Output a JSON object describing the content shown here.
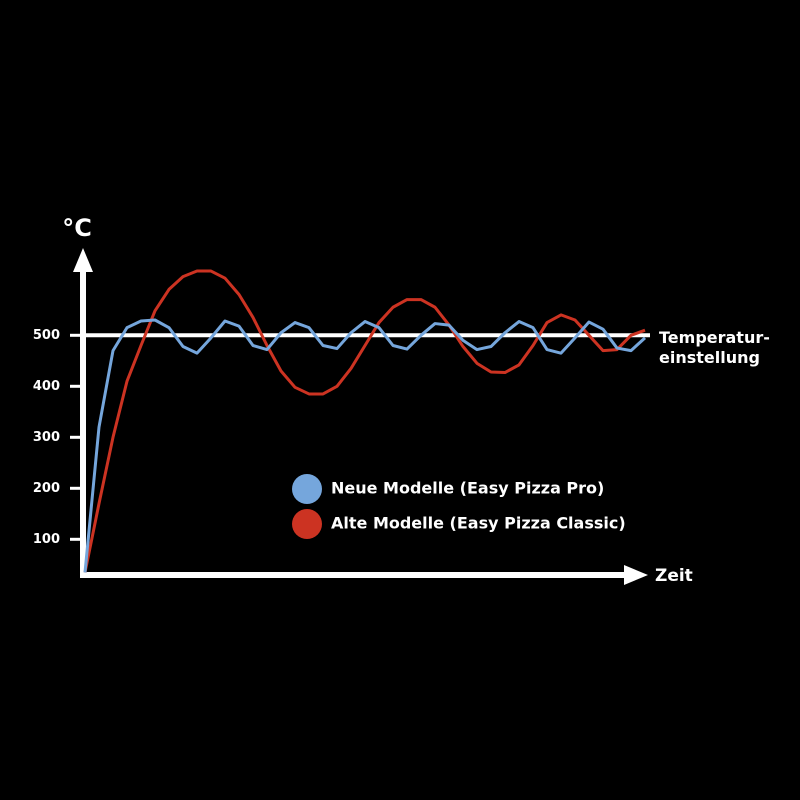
{
  "chart_data": {
    "type": "line",
    "y_label": "°C",
    "x_label": "Zeit",
    "categories": [
      null,
      null,
      null,
      null,
      null,
      null,
      null,
      null,
      null,
      null,
      null,
      null,
      null,
      null,
      null,
      null,
      null,
      null,
      null,
      null,
      null,
      null,
      null,
      null,
      null,
      null,
      null,
      null,
      null,
      null,
      null,
      null,
      null,
      null,
      null,
      null,
      null,
      null,
      null,
      null,
      null
    ],
    "series": [
      {
        "name": "Neue Modelle (Easy Pizza Pro)",
        "color": "#75a6dc",
        "values": [
          35,
          320,
          470,
          515,
          528,
          530,
          515,
          478,
          465,
          495,
          528,
          518,
          480,
          472,
          505,
          525,
          515,
          480,
          474,
          505,
          527,
          515,
          480,
          473,
          500,
          523,
          520,
          490,
          472,
          478,
          505,
          527,
          515,
          472,
          465,
          495,
          526,
          512,
          475,
          470,
          495
        ]
      },
      {
        "name": "Alte Modelle (Easy Pizza Classic)",
        "color": "#cc3322",
        "values": [
          35,
          170,
          300,
          410,
          480,
          548,
          590,
          615,
          626,
          626,
          612,
          580,
          535,
          480,
          430,
          398,
          385,
          385,
          400,
          435,
          480,
          525,
          555,
          570,
          570,
          555,
          520,
          478,
          445,
          428,
          427,
          442,
          480,
          525,
          540,
          530,
          500,
          470,
          472,
          500,
          510
        ]
      }
    ],
    "reference_line": {
      "value": 500,
      "label_lines": [
        "Temperatur-",
        "einstellung"
      ]
    },
    "ylim": [
      30,
      650
    ],
    "yticks": [
      100,
      200,
      300,
      400,
      500
    ],
    "grid": false
  }
}
